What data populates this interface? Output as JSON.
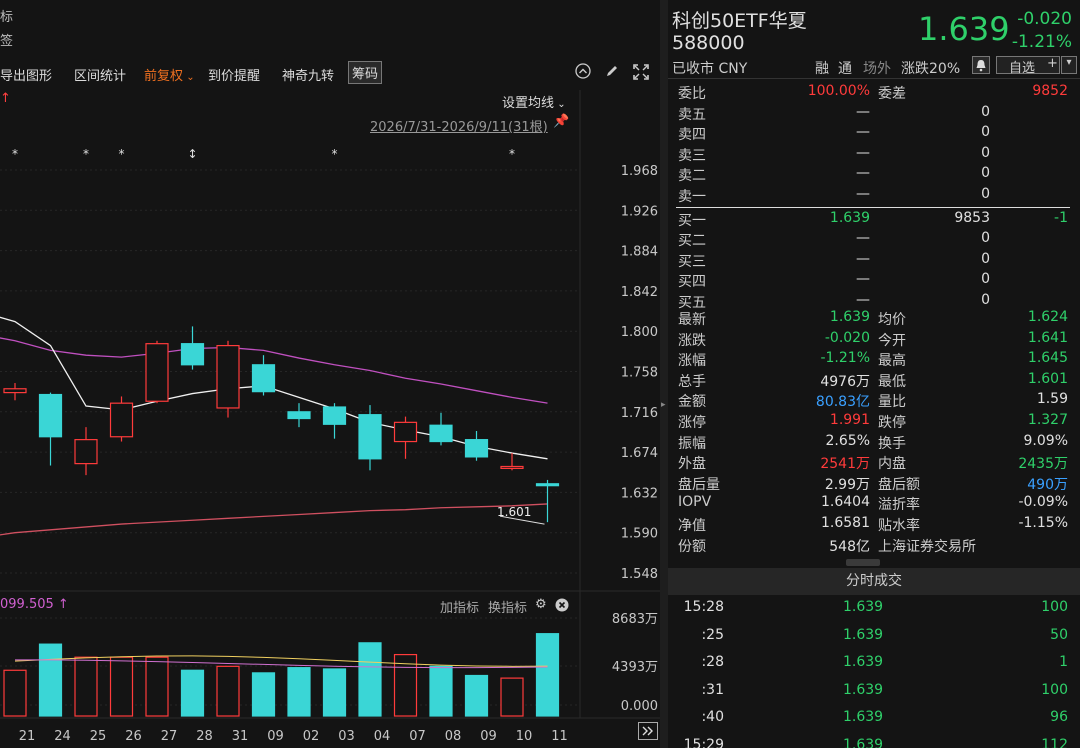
{
  "left_top": {
    "line1": "标",
    "line2": "签"
  },
  "toolbar": {
    "export": "导出图形",
    "range_stat": "区间统计",
    "adjust": "前复权",
    "alert": "到价提醒",
    "nine": "神奇九转",
    "chips": "筹码"
  },
  "ma_settings": "设置均线",
  "date_range": "2026/7/31-2026/9/11(31根)",
  "price_axis": [
    "1.968",
    "1.926",
    "1.884",
    "1.842",
    "1.800",
    "1.758",
    "1.716",
    "1.674",
    "1.632",
    "1.590",
    "1.548"
  ],
  "low_label": "1.601",
  "indicator": {
    "value": "099.505",
    "add": "加指标",
    "switch": "换指标"
  },
  "vol_axis": [
    "8683万",
    "4393万",
    "0.000"
  ],
  "dates": [
    "21",
    "24",
    "25",
    "26",
    "27",
    "28",
    "31",
    "09",
    "02",
    "03",
    "04",
    "07",
    "08",
    "09",
    "10",
    "11"
  ],
  "chart_data": {
    "type": "candlestick",
    "x": [
      "21",
      "24",
      "25",
      "26",
      "27",
      "28",
      "31",
      "09",
      "02",
      "03",
      "04",
      "07",
      "08",
      "09",
      "10",
      "11"
    ],
    "candles": [
      {
        "o": 1.736,
        "c": 1.74,
        "h": 1.746,
        "l": 1.728
      },
      {
        "o": 1.734,
        "c": 1.69,
        "h": 1.736,
        "l": 1.66
      },
      {
        "o": 1.662,
        "c": 1.687,
        "h": 1.7,
        "l": 1.65
      },
      {
        "o": 1.69,
        "c": 1.725,
        "h": 1.732,
        "l": 1.685
      },
      {
        "o": 1.727,
        "c": 1.787,
        "h": 1.79,
        "l": 1.725
      },
      {
        "o": 1.787,
        "c": 1.765,
        "h": 1.805,
        "l": 1.76
      },
      {
        "o": 1.72,
        "c": 1.785,
        "h": 1.79,
        "l": 1.71
      },
      {
        "o": 1.765,
        "c": 1.737,
        "h": 1.775,
        "l": 1.733
      },
      {
        "o": 1.716,
        "c": 1.709,
        "h": 1.725,
        "l": 1.7
      },
      {
        "o": 1.721,
        "c": 1.703,
        "h": 1.725,
        "l": 1.688
      },
      {
        "o": 1.713,
        "c": 1.667,
        "h": 1.723,
        "l": 1.655
      },
      {
        "o": 1.685,
        "c": 1.705,
        "h": 1.711,
        "l": 1.667
      },
      {
        "o": 1.702,
        "c": 1.685,
        "h": 1.715,
        "l": 1.681
      },
      {
        "o": 1.687,
        "c": 1.669,
        "h": 1.696,
        "l": 1.665
      },
      {
        "o": 1.657,
        "c": 1.659,
        "h": 1.673,
        "l": 1.655
      },
      {
        "o": 1.641,
        "c": 1.639,
        "h": 1.645,
        "l": 1.601
      }
    ],
    "ma_white": [
      1.81,
      1.785,
      1.722,
      1.718,
      1.727,
      1.735,
      1.74,
      1.743,
      1.731,
      1.719,
      1.705,
      1.697,
      1.69,
      1.68,
      1.673,
      1.667
    ],
    "ma_purple": [
      1.79,
      1.78,
      1.775,
      1.773,
      1.777,
      1.782,
      1.783,
      1.78,
      1.772,
      1.765,
      1.759,
      1.751,
      1.745,
      1.738,
      1.731,
      1.725
    ],
    "ma_red": [
      1.59,
      1.593,
      1.596,
      1.599,
      1.601,
      1.603,
      1.605,
      1.607,
      1.609,
      1.611,
      1.613,
      1.614,
      1.616,
      1.617,
      1.618,
      1.62
    ],
    "volume": [
      0.35,
      0.55,
      0.45,
      0.45,
      0.45,
      0.35,
      0.38,
      0.33,
      0.37,
      0.36,
      0.56,
      0.47,
      0.38,
      0.31,
      0.29,
      0.63
    ],
    "vol_max_label": "8683万",
    "ylim": [
      1.548,
      1.968
    ],
    "markers": [
      "*",
      "",
      "*",
      "*",
      "",
      "↕",
      "",
      "",
      "",
      "*",
      "",
      "",
      "",
      "",
      "*",
      ""
    ],
    "colors": {
      "up": "#ff3b3b",
      "down": "#3ad6d6",
      "ma_white": "#f0f0f0",
      "ma_purple": "#c050c0",
      "ma_red": "#d05060",
      "bg": "#141414"
    }
  },
  "quote": {
    "name": "科创50ETF华夏",
    "code": "588000",
    "price": "1.639",
    "change": "-0.020",
    "change_pct": "-1.21%",
    "status": "已收市 CNY",
    "tags": [
      "融",
      "通",
      "场外",
      "涨跌20%"
    ],
    "watch": "自选",
    "watch_plus": "+"
  },
  "order_book": {
    "ratio_label": "委比",
    "ratio": "100.00%",
    "diff_label": "委差",
    "diff": "9852",
    "asks": [
      {
        "label": "卖五",
        "price": "—",
        "vol": "0"
      },
      {
        "label": "卖四",
        "price": "—",
        "vol": "0"
      },
      {
        "label": "卖三",
        "price": "—",
        "vol": "0"
      },
      {
        "label": "卖二",
        "price": "—",
        "vol": "0"
      },
      {
        "label": "卖一",
        "price": "—",
        "vol": "0"
      }
    ],
    "bids": [
      {
        "label": "买一",
        "price": "1.639",
        "vol": "9853",
        "chg": "-1"
      },
      {
        "label": "买二",
        "price": "—",
        "vol": "0",
        "chg": ""
      },
      {
        "label": "买三",
        "price": "—",
        "vol": "0",
        "chg": ""
      },
      {
        "label": "买四",
        "price": "—",
        "vol": "0",
        "chg": ""
      },
      {
        "label": "买五",
        "price": "—",
        "vol": "0",
        "chg": ""
      }
    ]
  },
  "stats": [
    {
      "l1": "最新",
      "v1": "1.639",
      "c1": "green",
      "l2": "均价",
      "v2": "1.624",
      "c2": "green"
    },
    {
      "l1": "涨跌",
      "v1": "-0.020",
      "c1": "green",
      "l2": "今开",
      "v2": "1.641",
      "c2": "green"
    },
    {
      "l1": "涨幅",
      "v1": "-1.21%",
      "c1": "green",
      "l2": "最高",
      "v2": "1.645",
      "c2": "green"
    },
    {
      "l1": "总手",
      "v1": "4976万",
      "c1": "white",
      "l2": "最低",
      "v2": "1.601",
      "c2": "green"
    },
    {
      "l1": "金额",
      "v1": "80.83亿",
      "c1": "blue",
      "l2": "量比",
      "v2": "1.59",
      "c2": "white"
    },
    {
      "l1": "涨停",
      "v1": "1.991",
      "c1": "red",
      "l2": "跌停",
      "v2": "1.327",
      "c2": "green"
    },
    {
      "l1": "振幅",
      "v1": "2.65%",
      "c1": "white",
      "l2": "换手",
      "v2": "9.09%",
      "c2": "white"
    },
    {
      "l1": "外盘",
      "v1": "2541万",
      "c1": "red",
      "l2": "内盘",
      "v2": "2435万",
      "c2": "green"
    },
    {
      "l1": "盘后量",
      "v1": "2.99万",
      "c1": "white",
      "l2": "盘后额",
      "v2": "490万",
      "c2": "blue"
    },
    {
      "l1": "IOPV",
      "v1": "1.6404",
      "c1": "white",
      "l2": "溢折率",
      "v2": "-0.09%",
      "c2": "white"
    },
    {
      "l1": "净值",
      "v1": "1.6581",
      "c1": "white",
      "l2": "贴水率",
      "v2": "-1.15%",
      "c2": "white"
    },
    {
      "l1": "份额",
      "v1": "548亿",
      "c1": "white",
      "l2": "上海证券交易所",
      "v2": "",
      "c2": "white"
    }
  ],
  "ticks_title": "分时成交",
  "ticks": [
    {
      "t": "15:28",
      "p": "1.639",
      "v": "100"
    },
    {
      "t": ":25",
      "p": "1.639",
      "v": "50"
    },
    {
      "t": ":28",
      "p": "1.639",
      "v": "1"
    },
    {
      "t": ":31",
      "p": "1.639",
      "v": "100"
    },
    {
      "t": ":40",
      "p": "1.639",
      "v": "96"
    },
    {
      "t": "15:29",
      "p": "1.639",
      "v": "112"
    }
  ]
}
